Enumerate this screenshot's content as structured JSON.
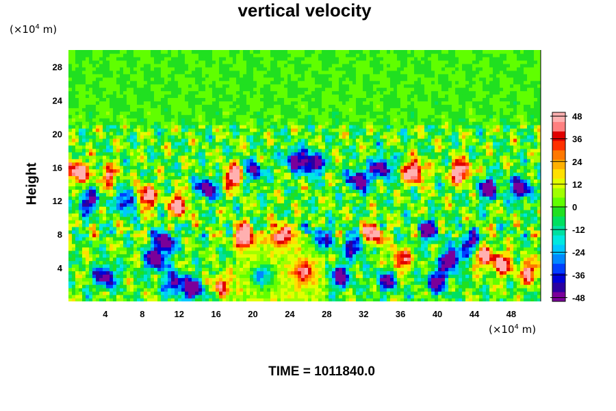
{
  "chart_data": {
    "type": "heatmap",
    "title": "vertical velocity",
    "ylabel": "Height",
    "xlabel": "",
    "x_unit": {
      "prefix": "(×10",
      "exp": "4",
      "suffix": " m)"
    },
    "y_unit": {
      "prefix": "(×10",
      "exp": "4",
      "suffix": " m)"
    },
    "xlim": [
      0,
      51.2
    ],
    "ylim": [
      0,
      30
    ],
    "x_ticks": [
      4,
      8,
      12,
      16,
      20,
      24,
      28,
      32,
      36,
      40,
      44,
      48
    ],
    "y_ticks": [
      4,
      8,
      12,
      16,
      20,
      24,
      28
    ],
    "colorbar": {
      "range": [
        -50,
        50
      ],
      "ticks": [
        48,
        36,
        24,
        12,
        0,
        -12,
        -24,
        -36,
        -48
      ],
      "colors": [
        "#7a009a",
        "#2b00a0",
        "#0000d8",
        "#0040ff",
        "#0088ff",
        "#00c8ff",
        "#00e8e0",
        "#00e0a0",
        "#00e060",
        "#20e020",
        "#60ff00",
        "#a0ff00",
        "#e0ff00",
        "#ffe000",
        "#ffb000",
        "#ff7800",
        "#ff3000",
        "#e00000",
        "#ff8080",
        "#ffb0b0"
      ]
    },
    "features": [
      {
        "x": 1.0,
        "y": 15.5,
        "w": 50
      },
      {
        "x": 2.2,
        "y": 12.0,
        "w": -40
      },
      {
        "x": 4.0,
        "y": 3.0,
        "w": -45
      },
      {
        "x": 4.3,
        "y": 15.0,
        "w": 30
      },
      {
        "x": 6.5,
        "y": 12.0,
        "w": -45
      },
      {
        "x": 8.3,
        "y": 12.5,
        "w": 50
      },
      {
        "x": 9.5,
        "y": 5.0,
        "w": -50
      },
      {
        "x": 10.5,
        "y": 7.2,
        "w": -50
      },
      {
        "x": 11.5,
        "y": 2.2,
        "w": -40
      },
      {
        "x": 13.5,
        "y": 1.5,
        "w": -48
      },
      {
        "x": 12.0,
        "y": 11.5,
        "w": 45
      },
      {
        "x": 15.0,
        "y": 13.5,
        "w": -48
      },
      {
        "x": 16.5,
        "y": 2.0,
        "w": 30
      },
      {
        "x": 18.0,
        "y": 15.0,
        "w": 50
      },
      {
        "x": 20.0,
        "y": 15.5,
        "w": -40
      },
      {
        "x": 19.0,
        "y": 8.0,
        "w": 48
      },
      {
        "x": 21.0,
        "y": 3.0,
        "w": -30
      },
      {
        "x": 23.0,
        "y": 8.0,
        "w": 40
      },
      {
        "x": 24.5,
        "y": 17.0,
        "w": -40
      },
      {
        "x": 26.5,
        "y": 16.5,
        "w": -48
      },
      {
        "x": 25.5,
        "y": 3.5,
        "w": 30
      },
      {
        "x": 27.5,
        "y": 7.5,
        "w": -40
      },
      {
        "x": 29.5,
        "y": 3.0,
        "w": -45
      },
      {
        "x": 31.0,
        "y": 6.5,
        "w": -40
      },
      {
        "x": 31.5,
        "y": 14.5,
        "w": -50
      },
      {
        "x": 33.0,
        "y": 8.0,
        "w": 45
      },
      {
        "x": 34.0,
        "y": 16.0,
        "w": -45
      },
      {
        "x": 34.5,
        "y": 2.5,
        "w": -35
      },
      {
        "x": 36.0,
        "y": 5.0,
        "w": 35
      },
      {
        "x": 37.5,
        "y": 15.5,
        "w": 50
      },
      {
        "x": 39.0,
        "y": 8.5,
        "w": -40
      },
      {
        "x": 40.0,
        "y": 2.5,
        "w": -45
      },
      {
        "x": 41.5,
        "y": 5.0,
        "w": -50
      },
      {
        "x": 42.5,
        "y": 15.5,
        "w": 50
      },
      {
        "x": 43.5,
        "y": 7.0,
        "w": -40
      },
      {
        "x": 45.5,
        "y": 13.5,
        "w": -45
      },
      {
        "x": 45.0,
        "y": 5.5,
        "w": 40
      },
      {
        "x": 47.0,
        "y": 4.5,
        "w": 40
      },
      {
        "x": 49.0,
        "y": 13.5,
        "w": -48
      },
      {
        "x": 50.0,
        "y": 3.5,
        "w": 35
      }
    ]
  },
  "footer": {
    "time_text": "TIME = 1011840.0"
  }
}
